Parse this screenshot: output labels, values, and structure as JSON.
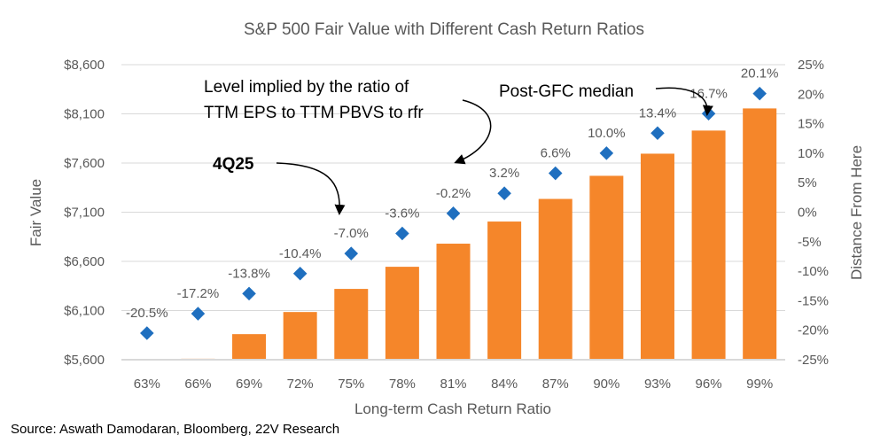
{
  "chart_data": {
    "type": "bar",
    "title": "S&P 500 Fair Value with Different Cash Return Ratios",
    "xlabel": "Long-term Cash Return Ratio",
    "ylabel": "Fair Value",
    "y2label": "Distance From Here",
    "categories": [
      "63%",
      "66%",
      "69%",
      "72%",
      "75%",
      "78%",
      "81%",
      "84%",
      "87%",
      "90%",
      "93%",
      "96%",
      "99%"
    ],
    "series": [
      {
        "name": "Fair Value",
        "type": "bar",
        "axis": "left",
        "color": "#F5862A",
        "values": [
          5600,
          5610,
          5860,
          6085,
          6320,
          6545,
          6780,
          7005,
          7235,
          7470,
          7695,
          7930,
          8155
        ]
      },
      {
        "name": "Distance From Here",
        "type": "scatter",
        "axis": "right",
        "color": "#1F6FBF",
        "values": [
          -20.5,
          -17.2,
          -13.8,
          -10.4,
          -7.0,
          -3.6,
          -0.2,
          3.2,
          6.6,
          10.0,
          13.4,
          16.7,
          20.1
        ],
        "labels": [
          "-20.5%",
          "-17.2%",
          "-13.8%",
          "-10.4%",
          "-7.0%",
          "-3.6%",
          "-0.2%",
          "3.2%",
          "6.6%",
          "10.0%",
          "13.4%",
          "16.7%",
          "20.1%"
        ]
      }
    ],
    "ylim": [
      5600,
      8600
    ],
    "yticks": [
      "$5,600",
      "$6,100",
      "$6,600",
      "$7,100",
      "$7,600",
      "$8,100",
      "$8,600"
    ],
    "y2lim": [
      -25,
      25
    ],
    "y2ticks": [
      "-25%",
      "-20%",
      "-15%",
      "-10%",
      "-5%",
      "0%",
      "5%",
      "10%",
      "15%",
      "20%",
      "25%"
    ],
    "grid": true,
    "annotations": {
      "ratio_line1": "Level implied by the ratio of",
      "ratio_line2": "TTM EPS to TTM PBVS to rfr",
      "current": "4Q25",
      "median": "Post-GFC median"
    }
  },
  "source": "Source: Aswath Damodaran, Bloomberg, 22V Research"
}
